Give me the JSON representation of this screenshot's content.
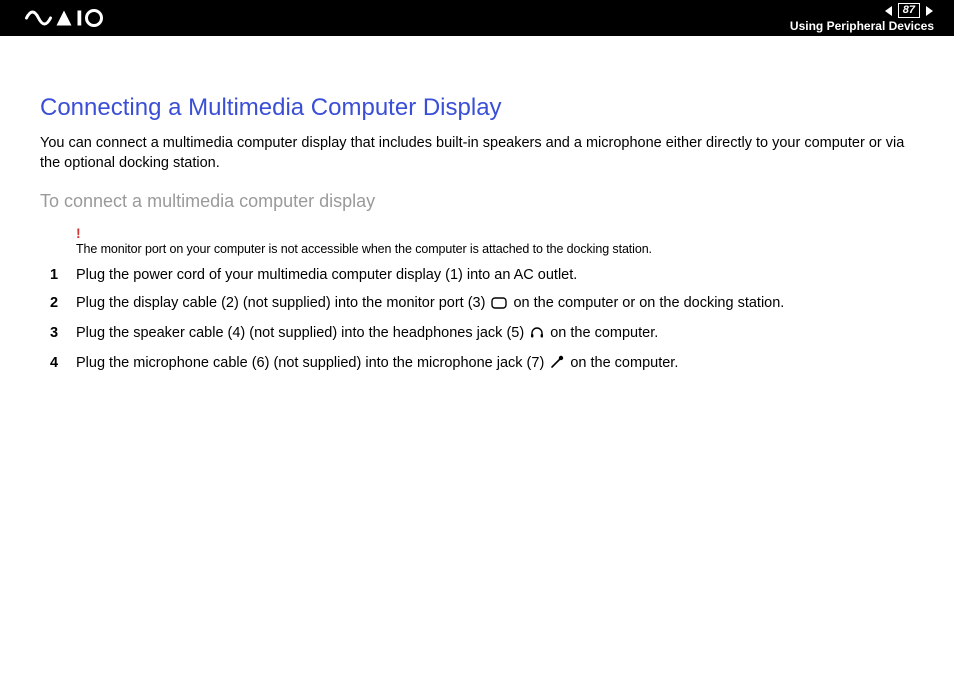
{
  "header": {
    "page_number": "87",
    "section": "Using Peripheral Devices",
    "colors": {
      "bg": "#000000",
      "fg": "#ffffff"
    }
  },
  "title": {
    "text": "Connecting a Multimedia Computer Display",
    "color": "#3a4fd6",
    "fontsize": 24
  },
  "intro": "You can connect a multimedia computer display that includes built-in speakers and a microphone either directly to your computer or via the optional docking station.",
  "subheading": {
    "text": "To connect a multimedia computer display",
    "color": "#9a9a9a",
    "fontsize": 18
  },
  "note": {
    "mark": "!",
    "mark_color": "#d23a3a",
    "text": "The monitor port on your computer is not accessible when the computer is attached to the docking station."
  },
  "steps": [
    {
      "num": "1",
      "pre": "Plug the power cord of your multimedia computer display (1) into an AC outlet.",
      "icon": null,
      "post": ""
    },
    {
      "num": "2",
      "pre": "Plug the display cable (2) (not supplied) into the monitor port (3) ",
      "icon": "monitor-port",
      "post": " on the computer or on the docking station."
    },
    {
      "num": "3",
      "pre": "Plug the speaker cable (4) (not supplied) into the headphones jack (5) ",
      "icon": "headphones",
      "post": " on the computer."
    },
    {
      "num": "4",
      "pre": "Plug the microphone cable (6) (not supplied) into the microphone jack (7) ",
      "icon": "microphone",
      "post": " on the computer."
    }
  ],
  "body_fontsize": 14.5,
  "page_bg": "#ffffff",
  "text_color": "#000000"
}
